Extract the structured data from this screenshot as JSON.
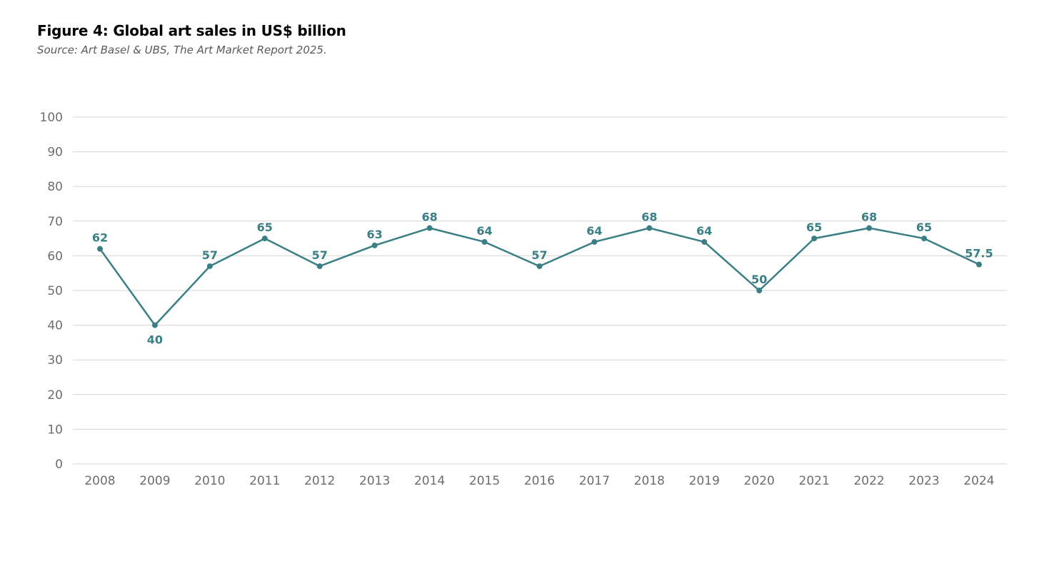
{
  "header": {
    "title": "Figure 4: Global art sales in US$ billion",
    "subtitle": "Source: Art Basel & UBS, The Art Market Report 2025."
  },
  "colors": {
    "series": "#3b7f86",
    "grid": "#d4d4d4",
    "tick_text": "#6d6d6d"
  },
  "chart_data": {
    "type": "line",
    "title": "Figure 4: Global art sales in US$ billion",
    "subtitle": "Source: Art Basel & UBS, The Art Market Report 2025.",
    "xlabel": "",
    "ylabel": "",
    "categories": [
      "2008",
      "2009",
      "2010",
      "2011",
      "2012",
      "2013",
      "2014",
      "2015",
      "2016",
      "2017",
      "2018",
      "2019",
      "2020",
      "2021",
      "2022",
      "2023",
      "2024"
    ],
    "values": [
      62,
      40,
      57,
      65,
      57,
      63,
      68,
      64,
      57,
      64,
      68,
      64,
      50,
      65,
      68,
      65,
      57.5
    ],
    "ylim": [
      0,
      100
    ],
    "yticks": [
      0,
      10,
      20,
      30,
      40,
      50,
      60,
      70,
      80,
      90,
      100
    ],
    "grid": true,
    "legend": "none",
    "data_labels": true
  }
}
